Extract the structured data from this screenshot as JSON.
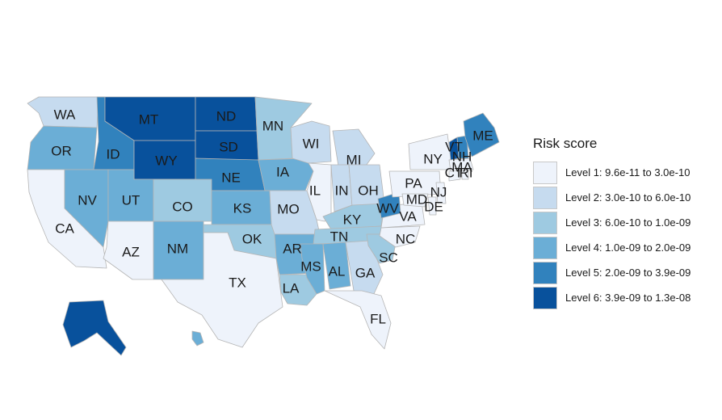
{
  "map": {
    "legend": {
      "title": "Risk score",
      "levels": [
        {
          "label": "Level 1: 9.6e-11 to 3.0e-10",
          "color": "#eef3fb"
        },
        {
          "label": "Level 2: 3.0e-10 to 6.0e-10",
          "color": "#c6dbef"
        },
        {
          "label": "Level 3: 6.0e-10 to 1.0e-09",
          "color": "#9ecae1"
        },
        {
          "label": "Level 4: 1.0e-09 to 2.0e-09",
          "color": "#6baed6"
        },
        {
          "label": "Level 5: 2.0e-09 to 3.9e-09",
          "color": "#3182bd"
        },
        {
          "label": "Level 6: 3.9e-09 to 1.3e-08",
          "color": "#08519c"
        }
      ]
    },
    "states": [
      {
        "abbr": "WA",
        "level": 2
      },
      {
        "abbr": "OR",
        "level": 4
      },
      {
        "abbr": "CA",
        "level": 1
      },
      {
        "abbr": "ID",
        "level": 5
      },
      {
        "abbr": "NV",
        "level": 4
      },
      {
        "abbr": "MT",
        "level": 6
      },
      {
        "abbr": "WY",
        "level": 6
      },
      {
        "abbr": "UT",
        "level": 4
      },
      {
        "abbr": "AZ",
        "level": 1
      },
      {
        "abbr": "CO",
        "level": 3
      },
      {
        "abbr": "NM",
        "level": 4
      },
      {
        "abbr": "ND",
        "level": 6
      },
      {
        "abbr": "SD",
        "level": 6
      },
      {
        "abbr": "NE",
        "level": 5
      },
      {
        "abbr": "KS",
        "level": 4
      },
      {
        "abbr": "OK",
        "level": 3
      },
      {
        "abbr": "TX",
        "level": 1
      },
      {
        "abbr": "MN",
        "level": 3
      },
      {
        "abbr": "IA",
        "level": 4
      },
      {
        "abbr": "MO",
        "level": 2
      },
      {
        "abbr": "AR",
        "level": 4
      },
      {
        "abbr": "LA",
        "level": 3
      },
      {
        "abbr": "WI",
        "level": 2
      },
      {
        "abbr": "IL",
        "level": 1
      },
      {
        "abbr": "MI",
        "level": 2
      },
      {
        "abbr": "IN",
        "level": 2
      },
      {
        "abbr": "OH",
        "level": 2
      },
      {
        "abbr": "KY",
        "level": 3
      },
      {
        "abbr": "TN",
        "level": 3
      },
      {
        "abbr": "MS",
        "level": 4
      },
      {
        "abbr": "AL",
        "level": 4
      },
      {
        "abbr": "GA",
        "level": 2
      },
      {
        "abbr": "FL",
        "level": 1
      },
      {
        "abbr": "SC",
        "level": 3
      },
      {
        "abbr": "NC",
        "level": 1
      },
      {
        "abbr": "VA",
        "level": 1
      },
      {
        "abbr": "WV",
        "level": 5
      },
      {
        "abbr": "PA",
        "level": 1
      },
      {
        "abbr": "NY",
        "level": 1
      },
      {
        "abbr": "MD",
        "level": 1
      },
      {
        "abbr": "DE",
        "level": 1
      },
      {
        "abbr": "NJ",
        "level": 1
      },
      {
        "abbr": "CT",
        "level": 1
      },
      {
        "abbr": "RI",
        "level": 1
      },
      {
        "abbr": "MA",
        "level": 1
      },
      {
        "abbr": "VT",
        "level": 6
      },
      {
        "abbr": "NH",
        "level": 5
      },
      {
        "abbr": "ME",
        "level": 5
      },
      {
        "abbr": "AK",
        "level": 6
      },
      {
        "abbr": "HI",
        "level": 4
      }
    ]
  }
}
